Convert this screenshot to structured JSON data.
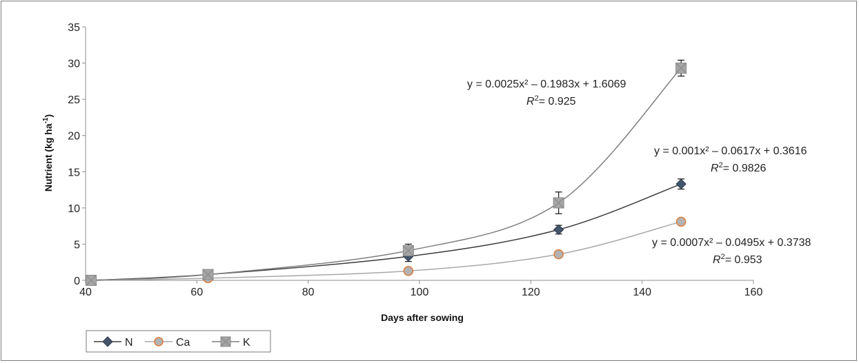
{
  "chart_data": {
    "type": "scatter",
    "xlabel": "Days after sowing",
    "ylabel": "Nutrient (kg ha-1)",
    "ylabel_main": "Nutrient (kg ha",
    "ylabel_sup": "-1",
    "ylabel_close": ")",
    "xlim": [
      40,
      160
    ],
    "ylim": [
      0,
      35
    ],
    "xticks": [
      40,
      60,
      80,
      100,
      120,
      140,
      160
    ],
    "yticks": [
      0,
      5,
      10,
      15,
      20,
      25,
      30,
      35
    ],
    "grid": false,
    "legend_position": "bottom-left",
    "series": [
      {
        "name": "N",
        "color": "#44546a",
        "line_color": "#3a3a3a",
        "marker": "diamond",
        "x": [
          41,
          62,
          98,
          125,
          147
        ],
        "y": [
          0,
          0.8,
          3.3,
          7.0,
          13.3
        ],
        "error": [
          0,
          0,
          0.7,
          0.6,
          0.7
        ],
        "equation": "y = 0.001x² – 0.0617x + 0.3616",
        "r2": "= 0.9826"
      },
      {
        "name": "Ca",
        "color": "#b3b3b3",
        "edge_color": "#e07b39",
        "line_color": "#a8a8a8",
        "marker": "circle",
        "x": [
          41,
          62,
          98,
          125,
          147
        ],
        "y": [
          0,
          0.3,
          1.3,
          3.6,
          8.1
        ],
        "error": [
          0,
          0,
          0.2,
          0.3,
          0.3
        ],
        "equation": "y = 0.0007x² – 0.0495x + 0.3738",
        "r2": "= 0.953"
      },
      {
        "name": "K",
        "color": "#a6a6a6",
        "line_color": "#7f7f7f",
        "marker": "square-x",
        "x": [
          41,
          62,
          98,
          125,
          147
        ],
        "y": [
          0,
          0.8,
          4.1,
          10.7,
          29.3
        ],
        "error": [
          0,
          0,
          0.9,
          1.5,
          1.1
        ],
        "equation": "y = 0.0025x² – 0.1983x + 1.6069",
        "r2": "= 0.925"
      }
    ]
  },
  "colors": {
    "axis": "#8c8c8c",
    "frame": "#7a7a7a"
  }
}
